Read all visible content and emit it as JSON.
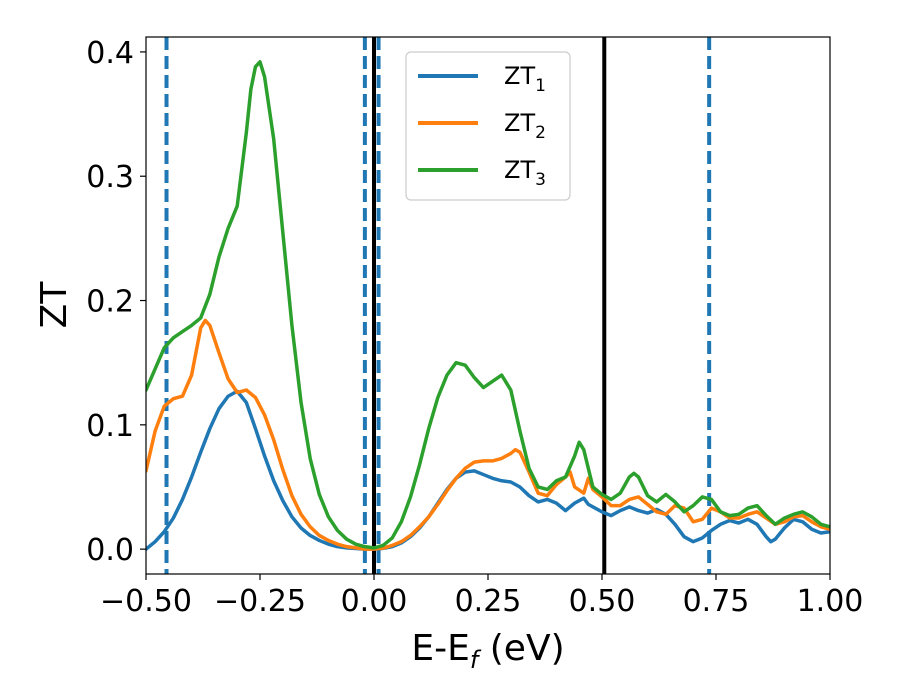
{
  "chart_data": {
    "type": "line",
    "xlabel": "E-E",
    "xlabel_sub": "f",
    "xlabel_unit": " (eV)",
    "ylabel": "ZT",
    "xlim": [
      -0.5,
      1.0
    ],
    "ylim": [
      -0.02,
      0.412
    ],
    "xticks": [
      -0.5,
      -0.25,
      0.0,
      0.25,
      0.5,
      0.75,
      1.0
    ],
    "xtick_labels": [
      "−0.50",
      "−0.25",
      "0.00",
      "0.25",
      "0.50",
      "0.75",
      "1.00"
    ],
    "yticks": [
      0.0,
      0.1,
      0.2,
      0.3,
      0.4
    ],
    "ytick_labels": [
      "0.0",
      "0.1",
      "0.2",
      "0.3",
      "0.4"
    ],
    "grid": false,
    "legend_position": "top-center",
    "vlines_dashed": [
      -0.455,
      -0.02,
      0.01,
      0.735
    ],
    "vlines_solid": [
      0.0,
      0.505
    ],
    "series": [
      {
        "name": "ZT",
        "name_sub": "1",
        "color": "#1f77b4",
        "points": [
          [
            -0.5,
            0.0
          ],
          [
            -0.48,
            0.006
          ],
          [
            -0.46,
            0.014
          ],
          [
            -0.44,
            0.025
          ],
          [
            -0.42,
            0.04
          ],
          [
            -0.4,
            0.058
          ],
          [
            -0.38,
            0.078
          ],
          [
            -0.36,
            0.097
          ],
          [
            -0.34,
            0.113
          ],
          [
            -0.32,
            0.123
          ],
          [
            -0.3,
            0.127
          ],
          [
            -0.28,
            0.118
          ],
          [
            -0.26,
            0.097
          ],
          [
            -0.24,
            0.075
          ],
          [
            -0.22,
            0.055
          ],
          [
            -0.2,
            0.039
          ],
          [
            -0.18,
            0.026
          ],
          [
            -0.16,
            0.017
          ],
          [
            -0.14,
            0.011
          ],
          [
            -0.12,
            0.007
          ],
          [
            -0.1,
            0.004
          ],
          [
            -0.08,
            0.002
          ],
          [
            -0.06,
            0.001
          ],
          [
            -0.04,
            0.0005
          ],
          [
            -0.02,
            0.0
          ],
          [
            0.0,
            0.0
          ],
          [
            0.02,
            0.0006
          ],
          [
            0.04,
            0.002
          ],
          [
            0.06,
            0.005
          ],
          [
            0.08,
            0.01
          ],
          [
            0.1,
            0.017
          ],
          [
            0.12,
            0.026
          ],
          [
            0.14,
            0.037
          ],
          [
            0.16,
            0.048
          ],
          [
            0.18,
            0.057
          ],
          [
            0.2,
            0.062
          ],
          [
            0.22,
            0.063
          ],
          [
            0.24,
            0.06
          ],
          [
            0.26,
            0.057
          ],
          [
            0.28,
            0.055
          ],
          [
            0.3,
            0.054
          ],
          [
            0.32,
            0.05
          ],
          [
            0.34,
            0.043
          ],
          [
            0.36,
            0.038
          ],
          [
            0.38,
            0.04
          ],
          [
            0.4,
            0.037
          ],
          [
            0.42,
            0.031
          ],
          [
            0.44,
            0.037
          ],
          [
            0.46,
            0.041
          ],
          [
            0.47,
            0.036
          ],
          [
            0.5,
            0.03
          ],
          [
            0.52,
            0.027
          ],
          [
            0.54,
            0.031
          ],
          [
            0.56,
            0.034
          ],
          [
            0.58,
            0.031
          ],
          [
            0.6,
            0.029
          ],
          [
            0.62,
            0.032
          ],
          [
            0.64,
            0.028
          ],
          [
            0.66,
            0.02
          ],
          [
            0.68,
            0.01
          ],
          [
            0.7,
            0.006
          ],
          [
            0.72,
            0.009
          ],
          [
            0.74,
            0.015
          ],
          [
            0.76,
            0.02
          ],
          [
            0.78,
            0.023
          ],
          [
            0.8,
            0.021
          ],
          [
            0.82,
            0.024
          ],
          [
            0.84,
            0.02
          ],
          [
            0.86,
            0.01
          ],
          [
            0.87,
            0.006
          ],
          [
            0.88,
            0.008
          ],
          [
            0.9,
            0.017
          ],
          [
            0.92,
            0.024
          ],
          [
            0.94,
            0.022
          ],
          [
            0.96,
            0.016
          ],
          [
            0.98,
            0.013
          ],
          [
            1.0,
            0.014
          ]
        ]
      },
      {
        "name": "ZT",
        "name_sub": "2",
        "color": "#ff7f0e",
        "points": [
          [
            -0.5,
            0.063
          ],
          [
            -0.48,
            0.095
          ],
          [
            -0.46,
            0.115
          ],
          [
            -0.44,
            0.121
          ],
          [
            -0.42,
            0.123
          ],
          [
            -0.4,
            0.14
          ],
          [
            -0.38,
            0.178
          ],
          [
            -0.37,
            0.184
          ],
          [
            -0.36,
            0.18
          ],
          [
            -0.34,
            0.158
          ],
          [
            -0.32,
            0.137
          ],
          [
            -0.3,
            0.126
          ],
          [
            -0.28,
            0.128
          ],
          [
            -0.26,
            0.122
          ],
          [
            -0.24,
            0.108
          ],
          [
            -0.22,
            0.088
          ],
          [
            -0.2,
            0.064
          ],
          [
            -0.18,
            0.043
          ],
          [
            -0.16,
            0.028
          ],
          [
            -0.14,
            0.018
          ],
          [
            -0.12,
            0.011
          ],
          [
            -0.1,
            0.007
          ],
          [
            -0.08,
            0.004
          ],
          [
            -0.06,
            0.002
          ],
          [
            -0.04,
            0.001
          ],
          [
            -0.02,
            0.0
          ],
          [
            0.0,
            0.0
          ],
          [
            0.02,
            0.0008
          ],
          [
            0.04,
            0.003
          ],
          [
            0.06,
            0.006
          ],
          [
            0.08,
            0.011
          ],
          [
            0.1,
            0.018
          ],
          [
            0.12,
            0.026
          ],
          [
            0.14,
            0.036
          ],
          [
            0.16,
            0.047
          ],
          [
            0.18,
            0.057
          ],
          [
            0.2,
            0.065
          ],
          [
            0.22,
            0.07
          ],
          [
            0.24,
            0.071
          ],
          [
            0.26,
            0.071
          ],
          [
            0.28,
            0.073
          ],
          [
            0.3,
            0.077
          ],
          [
            0.31,
            0.08
          ],
          [
            0.32,
            0.078
          ],
          [
            0.34,
            0.062
          ],
          [
            0.36,
            0.045
          ],
          [
            0.38,
            0.043
          ],
          [
            0.4,
            0.052
          ],
          [
            0.42,
            0.058
          ],
          [
            0.43,
            0.062
          ],
          [
            0.44,
            0.05
          ],
          [
            0.46,
            0.045
          ],
          [
            0.47,
            0.057
          ],
          [
            0.48,
            0.048
          ],
          [
            0.5,
            0.042
          ],
          [
            0.52,
            0.035
          ],
          [
            0.54,
            0.035
          ],
          [
            0.56,
            0.04
          ],
          [
            0.58,
            0.042
          ],
          [
            0.6,
            0.036
          ],
          [
            0.62,
            0.03
          ],
          [
            0.64,
            0.028
          ],
          [
            0.66,
            0.035
          ],
          [
            0.68,
            0.033
          ],
          [
            0.7,
            0.022
          ],
          [
            0.72,
            0.024
          ],
          [
            0.74,
            0.033
          ],
          [
            0.76,
            0.03
          ],
          [
            0.78,
            0.025
          ],
          [
            0.8,
            0.025
          ],
          [
            0.82,
            0.028
          ],
          [
            0.84,
            0.03
          ],
          [
            0.86,
            0.025
          ],
          [
            0.88,
            0.02
          ],
          [
            0.9,
            0.022
          ],
          [
            0.92,
            0.026
          ],
          [
            0.94,
            0.027
          ],
          [
            0.96,
            0.022
          ],
          [
            0.98,
            0.018
          ],
          [
            1.0,
            0.016
          ]
        ]
      },
      {
        "name": "ZT",
        "name_sub": "3",
        "color": "#2ca02c",
        "points": [
          [
            -0.5,
            0.128
          ],
          [
            -0.48,
            0.145
          ],
          [
            -0.46,
            0.162
          ],
          [
            -0.44,
            0.17
          ],
          [
            -0.42,
            0.175
          ],
          [
            -0.4,
            0.18
          ],
          [
            -0.38,
            0.186
          ],
          [
            -0.36,
            0.205
          ],
          [
            -0.34,
            0.235
          ],
          [
            -0.32,
            0.258
          ],
          [
            -0.3,
            0.276
          ],
          [
            -0.28,
            0.335
          ],
          [
            -0.27,
            0.37
          ],
          [
            -0.26,
            0.388
          ],
          [
            -0.25,
            0.392
          ],
          [
            -0.24,
            0.38
          ],
          [
            -0.22,
            0.33
          ],
          [
            -0.2,
            0.255
          ],
          [
            -0.18,
            0.18
          ],
          [
            -0.16,
            0.118
          ],
          [
            -0.14,
            0.073
          ],
          [
            -0.12,
            0.044
          ],
          [
            -0.1,
            0.026
          ],
          [
            -0.08,
            0.015
          ],
          [
            -0.06,
            0.008
          ],
          [
            -0.04,
            0.004
          ],
          [
            -0.02,
            0.002
          ],
          [
            0.0,
            0.001
          ],
          [
            0.02,
            0.003
          ],
          [
            0.04,
            0.009
          ],
          [
            0.06,
            0.022
          ],
          [
            0.08,
            0.042
          ],
          [
            0.1,
            0.068
          ],
          [
            0.12,
            0.097
          ],
          [
            0.14,
            0.122
          ],
          [
            0.16,
            0.14
          ],
          [
            0.18,
            0.15
          ],
          [
            0.2,
            0.148
          ],
          [
            0.22,
            0.138
          ],
          [
            0.24,
            0.13
          ],
          [
            0.26,
            0.135
          ],
          [
            0.28,
            0.14
          ],
          [
            0.3,
            0.128
          ],
          [
            0.32,
            0.095
          ],
          [
            0.34,
            0.065
          ],
          [
            0.36,
            0.05
          ],
          [
            0.38,
            0.048
          ],
          [
            0.4,
            0.055
          ],
          [
            0.42,
            0.058
          ],
          [
            0.44,
            0.075
          ],
          [
            0.45,
            0.086
          ],
          [
            0.46,
            0.08
          ],
          [
            0.48,
            0.05
          ],
          [
            0.5,
            0.044
          ],
          [
            0.52,
            0.04
          ],
          [
            0.54,
            0.045
          ],
          [
            0.56,
            0.058
          ],
          [
            0.57,
            0.061
          ],
          [
            0.58,
            0.058
          ],
          [
            0.6,
            0.043
          ],
          [
            0.62,
            0.038
          ],
          [
            0.64,
            0.044
          ],
          [
            0.66,
            0.038
          ],
          [
            0.68,
            0.03
          ],
          [
            0.7,
            0.035
          ],
          [
            0.72,
            0.042
          ],
          [
            0.74,
            0.04
          ],
          [
            0.76,
            0.03
          ],
          [
            0.78,
            0.027
          ],
          [
            0.8,
            0.028
          ],
          [
            0.82,
            0.033
          ],
          [
            0.84,
            0.035
          ],
          [
            0.86,
            0.027
          ],
          [
            0.88,
            0.02
          ],
          [
            0.9,
            0.025
          ],
          [
            0.92,
            0.028
          ],
          [
            0.94,
            0.03
          ],
          [
            0.96,
            0.026
          ],
          [
            0.98,
            0.02
          ],
          [
            1.0,
            0.018
          ]
        ]
      }
    ]
  }
}
